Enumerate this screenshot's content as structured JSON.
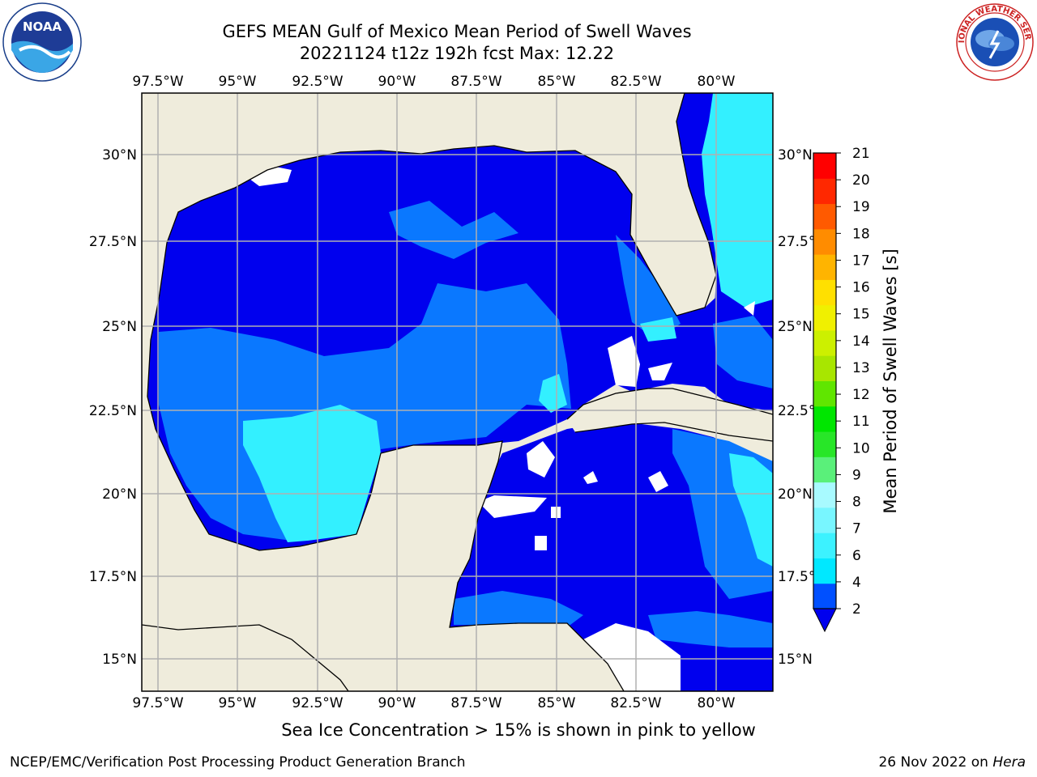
{
  "header": {
    "title_line1": "GEFS MEAN Gulf of Mexico Mean Period of Swell Waves",
    "title_line2": "20221124 t12z 192h fcst   Max: 12.22"
  },
  "logos": {
    "left_text": "NOAA",
    "left_ring_text": "NATIONAL OCEANIC AND ATMOSPHERIC ADMINISTRATION · U.S. DEPARTMENT OF COMMERCE",
    "right_ring_text": "NATIONAL WEATHER SERVICE"
  },
  "map": {
    "lon_labels": [
      "97.5°W",
      "95°W",
      "92.5°W",
      "90°W",
      "87.5°W",
      "85°W",
      "82.5°W",
      "80°W"
    ],
    "lat_labels": [
      "30°N",
      "27.5°N",
      "25°N",
      "22.5°N",
      "20°N",
      "17.5°N",
      "15°N"
    ],
    "colors": {
      "land": "#efecdc",
      "ocean_fill": "#0000ee",
      "grid": "#b0b0b0"
    }
  },
  "colorbar": {
    "label": "Mean Period of Swell Waves [s]",
    "ticks": [
      "2",
      "4",
      "6",
      "7",
      "8",
      "9",
      "10",
      "11",
      "12",
      "13",
      "14",
      "15",
      "16",
      "17",
      "18",
      "19",
      "20",
      "21"
    ],
    "colors": [
      "#0050ff",
      "#00e8ff",
      "#3cf2ff",
      "#78f6ff",
      "#a8faff",
      "#5af07a",
      "#28e628",
      "#00e600",
      "#60e600",
      "#a8e600",
      "#ccf000",
      "#f0f000",
      "#ffe000",
      "#ffb400",
      "#ff8c00",
      "#ff5a00",
      "#ff2800",
      "#ff0000"
    ],
    "under_color": "#0000ee"
  },
  "note": "Sea Ice Concentration > 15% is shown in pink to yellow",
  "footer": {
    "left": "NCEP/EMC/Verification Post Processing Product Generation Branch",
    "date": "26 Nov 2022 on ",
    "host": "Hera"
  }
}
